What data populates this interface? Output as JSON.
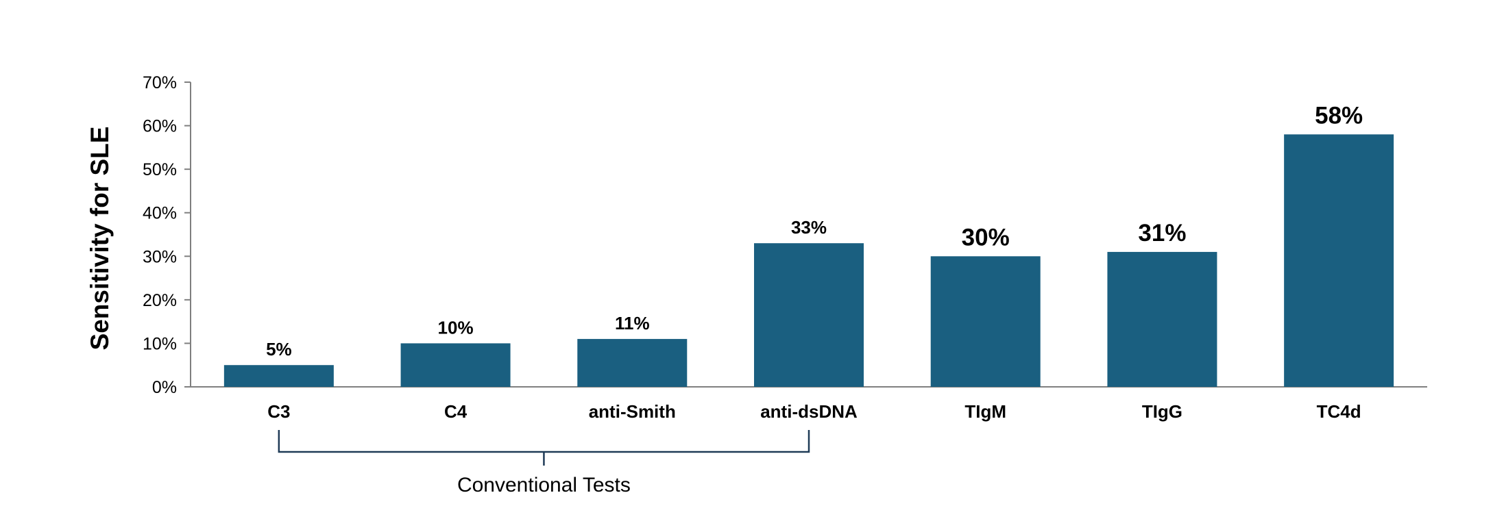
{
  "chart_data": {
    "type": "bar",
    "title": "",
    "xlabel": "",
    "ylabel": "Sensitivity for SLE",
    "ylim": [
      0,
      70
    ],
    "yticks": [
      0,
      10,
      20,
      30,
      40,
      50,
      60,
      70
    ],
    "ytick_labels": [
      "0%",
      "10%",
      "20%",
      "30%",
      "40%",
      "50%",
      "60%",
      "70%"
    ],
    "grid": false,
    "bar_color": "#1a5f80",
    "categories": [
      "C3",
      "C4",
      "anti-Smith",
      "anti-dsDNA",
      "TIgM",
      "TIgG",
      "TC4d"
    ],
    "values": [
      5,
      10,
      11,
      33,
      30,
      31,
      58
    ],
    "data_labels": [
      "5%",
      "10%",
      "11%",
      "33%",
      "30%",
      "31%",
      "58%"
    ],
    "data_label_emphasis": [
      "small",
      "small",
      "small",
      "small",
      "large",
      "large",
      "large"
    ],
    "group_bracket": {
      "label": "Conventional Tests",
      "categories": [
        "C3",
        "C4",
        "anti-Smith",
        "anti-dsDNA"
      ]
    }
  }
}
